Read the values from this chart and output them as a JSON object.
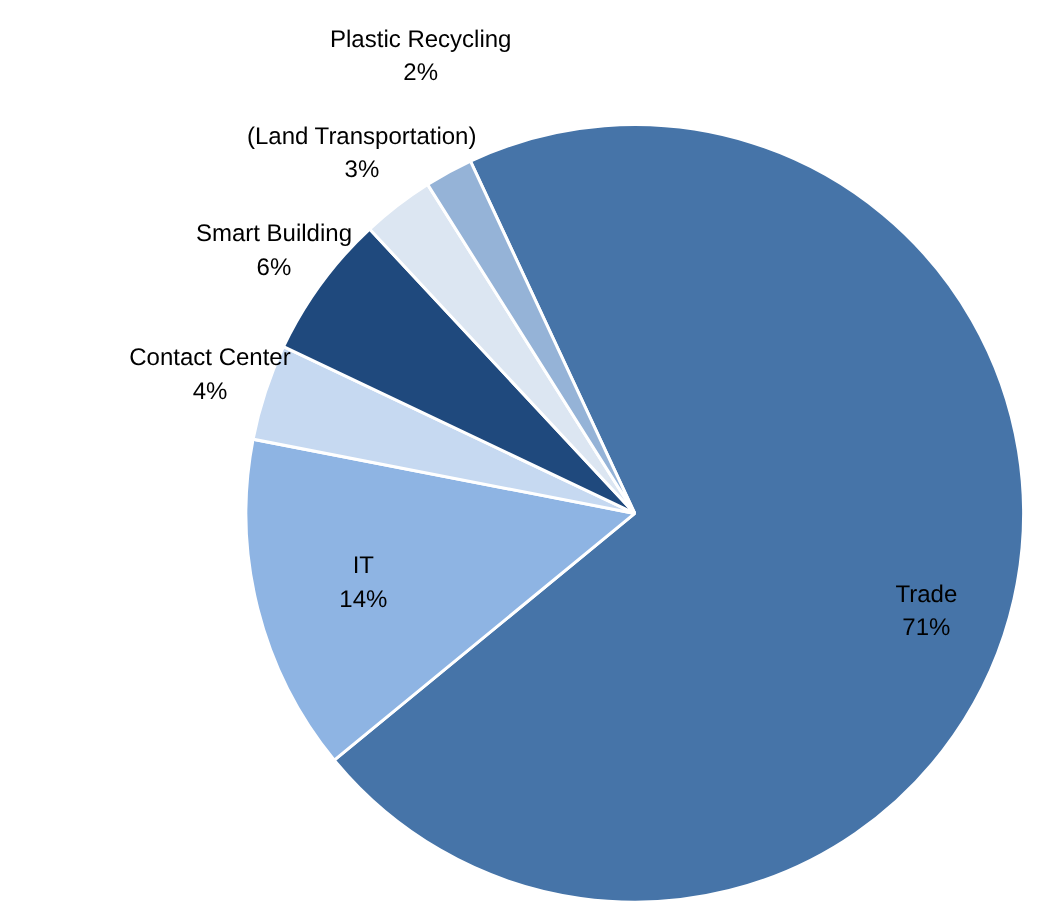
{
  "chart_data": {
    "type": "pie",
    "categories": [
      "Trade",
      "IT",
      "Contact Center",
      "Smart Building",
      "(Land Transportation)",
      "Plastic Recycling"
    ],
    "values": [
      71,
      14,
      4,
      6,
      3,
      2
    ],
    "value_labels": [
      "71%",
      "14%",
      "4%",
      "6%",
      "3%",
      "2%"
    ],
    "colors": [
      "#4674a8",
      "#8eb4e3",
      "#c6d9f1",
      "#1f497d",
      "#dce6f2",
      "#95b3d7"
    ],
    "legend": false
  }
}
